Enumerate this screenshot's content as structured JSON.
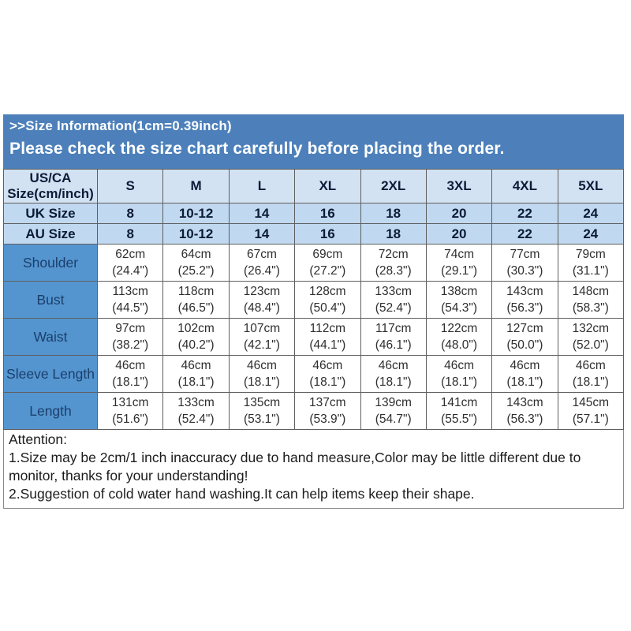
{
  "header": {
    "title": ">>Size Information(1cm=0.39inch)",
    "subtitle": "Please check the size chart carefully before placing the order."
  },
  "colors": {
    "band_blue": "#4d80ba",
    "header_row_bg": "#d2e2f2",
    "size_row_bg": "#c0d8f0",
    "label_cell_bg": "#5495d0",
    "border_gray": "#5f5f5f"
  },
  "size_table": {
    "corner_header": "US/CA\nSize(cm/inch)",
    "size_columns": [
      "S",
      "M",
      "L",
      "XL",
      "2XL",
      "3XL",
      "4XL",
      "5XL"
    ],
    "size_rows": [
      {
        "label": "UK Size",
        "values": [
          "8",
          "10-12",
          "14",
          "16",
          "18",
          "20",
          "22",
          "24"
        ]
      },
      {
        "label": "AU Size",
        "values": [
          "8",
          "10-12",
          "14",
          "16",
          "18",
          "20",
          "22",
          "24"
        ]
      }
    ],
    "measure_rows": [
      {
        "label": "Shoulder",
        "values": [
          {
            "cm": "62cm",
            "inch": "(24.4\")"
          },
          {
            "cm": "64cm",
            "inch": "(25.2\")"
          },
          {
            "cm": "67cm",
            "inch": "(26.4\")"
          },
          {
            "cm": "69cm",
            "inch": "(27.2\")"
          },
          {
            "cm": "72cm",
            "inch": "(28.3\")"
          },
          {
            "cm": "74cm",
            "inch": "(29.1\")"
          },
          {
            "cm": "77cm",
            "inch": "(30.3\")"
          },
          {
            "cm": "79cm",
            "inch": "(31.1\")"
          }
        ]
      },
      {
        "label": "Bust",
        "values": [
          {
            "cm": "113cm",
            "inch": "(44.5\")"
          },
          {
            "cm": "118cm",
            "inch": "(46.5\")"
          },
          {
            "cm": "123cm",
            "inch": "(48.4\")"
          },
          {
            "cm": "128cm",
            "inch": "(50.4\")"
          },
          {
            "cm": "133cm",
            "inch": "(52.4\")"
          },
          {
            "cm": "138cm",
            "inch": "(54.3\")"
          },
          {
            "cm": "143cm",
            "inch": "(56.3\")"
          },
          {
            "cm": "148cm",
            "inch": "(58.3\")"
          }
        ]
      },
      {
        "label": "Waist",
        "values": [
          {
            "cm": "97cm",
            "inch": "(38.2\")"
          },
          {
            "cm": "102cm",
            "inch": "(40.2\")"
          },
          {
            "cm": "107cm",
            "inch": "(42.1\")"
          },
          {
            "cm": "112cm",
            "inch": "(44.1\")"
          },
          {
            "cm": "117cm",
            "inch": "(46.1\")"
          },
          {
            "cm": "122cm",
            "inch": "(48.0\")"
          },
          {
            "cm": "127cm",
            "inch": "(50.0\")"
          },
          {
            "cm": "132cm",
            "inch": "(52.0\")"
          }
        ]
      },
      {
        "label": "Sleeve Length",
        "values": [
          {
            "cm": "46cm",
            "inch": "(18.1\")"
          },
          {
            "cm": "46cm",
            "inch": "(18.1\")"
          },
          {
            "cm": "46cm",
            "inch": "(18.1\")"
          },
          {
            "cm": "46cm",
            "inch": "(18.1\")"
          },
          {
            "cm": "46cm",
            "inch": "(18.1\")"
          },
          {
            "cm": "46cm",
            "inch": "(18.1\")"
          },
          {
            "cm": "46cm",
            "inch": "(18.1\")"
          },
          {
            "cm": "46cm",
            "inch": "(18.1\")"
          }
        ]
      },
      {
        "label": "Length",
        "values": [
          {
            "cm": "131cm",
            "inch": "(51.6\")"
          },
          {
            "cm": "133cm",
            "inch": "(52.4\")"
          },
          {
            "cm": "135cm",
            "inch": "(53.1\")"
          },
          {
            "cm": "137cm",
            "inch": "(53.9\")"
          },
          {
            "cm": "139cm",
            "inch": "(54.7\")"
          },
          {
            "cm": "141cm",
            "inch": "(55.5\")"
          },
          {
            "cm": "143cm",
            "inch": "(56.3\")"
          },
          {
            "cm": "145cm",
            "inch": "(57.1\")"
          }
        ]
      }
    ]
  },
  "attention": {
    "heading": "Attention:",
    "notes": [
      "1.Size may be 2cm/1 inch inaccuracy due to hand measure,Color may be little different due to monitor, thanks for your understanding!",
      "2.Suggestion of cold water hand washing.It can help items keep their shape."
    ]
  }
}
